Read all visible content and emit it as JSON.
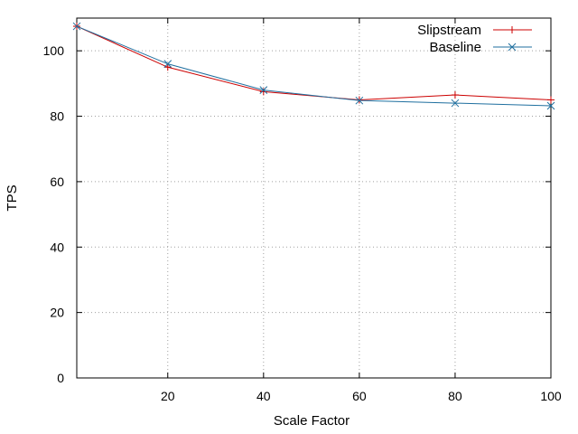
{
  "chart_data": {
    "type": "line",
    "xlabel": "Scale Factor",
    "ylabel": "TPS",
    "xlim": [
      1,
      100
    ],
    "ylim": [
      0,
      110
    ],
    "xticks": [
      20,
      40,
      60,
      80,
      100
    ],
    "yticks": [
      0,
      20,
      40,
      60,
      80,
      100
    ],
    "grid": true,
    "legend_position": "top-right",
    "x": [
      1,
      20,
      40,
      60,
      80,
      100
    ],
    "series": [
      {
        "name": "Slipstream",
        "color": "#cc0000",
        "marker": "plus",
        "values": [
          107.5,
          95.0,
          87.5,
          85.0,
          86.5,
          85.0
        ]
      },
      {
        "name": "Baseline",
        "color": "#1f6f9f",
        "marker": "cross",
        "values": [
          107.5,
          96.0,
          88.0,
          84.8,
          84.0,
          83.2
        ]
      }
    ]
  }
}
